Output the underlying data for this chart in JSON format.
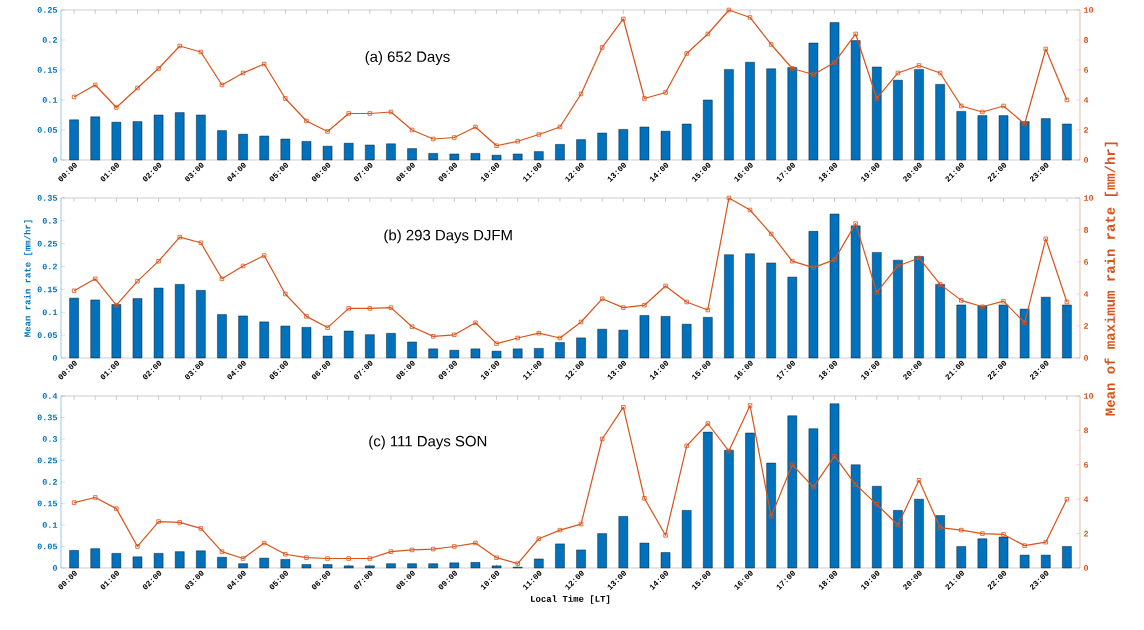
{
  "chart_data": [
    {
      "type": "bar",
      "title": "(a) 652 Days",
      "categories": [
        "00:00",
        null,
        "01:00",
        null,
        "02:00",
        null,
        "03:00",
        null,
        "04:00",
        null,
        "05:00",
        null,
        "06:00",
        null,
        "07:00",
        null,
        "08:00",
        null,
        "09:00",
        null,
        "10:00",
        null,
        "11:00",
        null,
        "12:00",
        null,
        "13:00",
        null,
        "14:00",
        null,
        "15:00",
        null,
        "16:00",
        null,
        "17:00",
        null,
        "18:00",
        null,
        "19:00",
        null,
        "20:00",
        null,
        "21:00",
        null,
        "22:00",
        null,
        "23:00",
        null
      ],
      "series": [
        {
          "color": "#0072bd",
          "values": [
            0.067,
            0.072,
            0.063,
            0.064,
            0.075,
            0.079,
            0.075,
            0.049,
            0.043,
            0.04,
            0.035,
            0.031,
            0.023,
            0.028,
            0.025,
            0.027,
            0.019,
            0.011,
            0.01,
            0.011,
            0.008,
            0.01,
            0.014,
            0.026,
            0.034,
            0.045,
            0.051,
            0.055,
            0.048,
            0.06,
            0.1,
            0.151,
            0.163,
            0.152,
            0.154,
            0.195,
            0.229,
            0.199,
            0.155,
            0.133,
            0.151,
            0.126,
            0.081,
            0.074,
            0.074,
            0.064,
            0.069,
            0.06
          ]
        },
        {
          "type": "line",
          "axis": "y2",
          "color": "#d95319",
          "marker": "square",
          "values": [
            4.2,
            5.0,
            3.5,
            4.8,
            6.1,
            7.6,
            7.2,
            5.0,
            5.8,
            6.4,
            4.1,
            2.6,
            1.9,
            3.1,
            3.1,
            3.2,
            2.0,
            1.4,
            1.5,
            2.2,
            0.95,
            1.25,
            1.7,
            2.2,
            4.4,
            7.5,
            9.4,
            4.1,
            4.5,
            7.1,
            8.4,
            10.0,
            9.5,
            7.7,
            6.1,
            5.7,
            6.5,
            8.4,
            4.1,
            5.8,
            6.3,
            5.8,
            3.6,
            3.2,
            3.6,
            2.4,
            7.4,
            4.0
          ]
        }
      ],
      "ylim": [
        0,
        0.25
      ],
      "yticks": [
        0,
        0.05,
        0.1,
        0.15,
        0.2,
        0.25
      ],
      "y2lim": [
        0,
        10
      ],
      "y2ticks": [
        0,
        2,
        4,
        6,
        8,
        10
      ]
    },
    {
      "type": "bar",
      "title": "(b) 293 Days DJFM",
      "ylabel": "Mean rain rate [mm/hr]",
      "y2label": "Mean of maximum rain rate [mm/hr]",
      "categories": [
        "00:00",
        null,
        "01:00",
        null,
        "02:00",
        null,
        "03:00",
        null,
        "04:00",
        null,
        "05:00",
        null,
        "06:00",
        null,
        "07:00",
        null,
        "08:00",
        null,
        "09:00",
        null,
        "10:00",
        null,
        "11:00",
        null,
        "12:00",
        null,
        "13:00",
        null,
        "14:00",
        null,
        "15:00",
        null,
        "16:00",
        null,
        "17:00",
        null,
        "18:00",
        null,
        "19:00",
        null,
        "20:00",
        null,
        "21:00",
        null,
        "22:00",
        null,
        "23:00",
        null
      ],
      "series": [
        {
          "color": "#0072bd",
          "values": [
            0.131,
            0.127,
            0.117,
            0.13,
            0.153,
            0.161,
            0.148,
            0.095,
            0.092,
            0.079,
            0.07,
            0.067,
            0.048,
            0.059,
            0.051,
            0.054,
            0.035,
            0.02,
            0.017,
            0.02,
            0.015,
            0.02,
            0.021,
            0.034,
            0.044,
            0.063,
            0.061,
            0.093,
            0.091,
            0.074,
            0.089,
            0.226,
            0.228,
            0.208,
            0.177,
            0.277,
            0.315,
            0.289,
            0.231,
            0.214,
            0.222,
            0.161,
            0.116,
            0.114,
            0.116,
            0.107,
            0.133,
            0.116
          ]
        },
        {
          "type": "line",
          "axis": "y2",
          "color": "#d95319",
          "marker": "square",
          "values": [
            4.2,
            4.95,
            3.3,
            4.8,
            6.05,
            7.55,
            7.2,
            4.95,
            5.75,
            6.4,
            4.0,
            2.6,
            1.9,
            3.1,
            3.1,
            3.15,
            1.95,
            1.35,
            1.45,
            2.2,
            0.9,
            1.25,
            1.55,
            1.25,
            2.25,
            3.7,
            3.15,
            3.3,
            4.5,
            3.5,
            3.0,
            10.0,
            9.25,
            7.75,
            6.05,
            5.65,
            6.15,
            8.4,
            4.1,
            5.75,
            6.25,
            4.6,
            3.6,
            3.2,
            3.55,
            2.2,
            7.45,
            3.5
          ]
        }
      ],
      "ylim": [
        0,
        0.35
      ],
      "yticks": [
        0,
        0.05,
        0.1,
        0.15,
        0.2,
        0.25,
        0.3,
        0.35
      ],
      "y2lim": [
        0,
        10
      ],
      "y2ticks": [
        0,
        2,
        4,
        6,
        8,
        10
      ]
    },
    {
      "type": "bar",
      "title": "(c) 111 Days SON",
      "xlabel": "Local Time [LT]",
      "categories": [
        "00:00",
        null,
        "01:00",
        null,
        "02:00",
        null,
        "03:00",
        null,
        "04:00",
        null,
        "05:00",
        null,
        "06:00",
        null,
        "07:00",
        null,
        "08:00",
        null,
        "09:00",
        null,
        "10:00",
        null,
        "11:00",
        null,
        "12:00",
        null,
        "13:00",
        null,
        "14:00",
        null,
        "15:00",
        null,
        "16:00",
        null,
        "17:00",
        null,
        "18:00",
        null,
        "19:00",
        null,
        "20:00",
        null,
        "21:00",
        null,
        "22:00",
        null,
        "23:00",
        null
      ],
      "series": [
        {
          "color": "#0072bd",
          "values": [
            0.041,
            0.045,
            0.034,
            0.026,
            0.034,
            0.038,
            0.04,
            0.025,
            0.01,
            0.023,
            0.02,
            0.008,
            0.008,
            0.005,
            0.005,
            0.01,
            0.01,
            0.01,
            0.012,
            0.013,
            0.005,
            0.002,
            0.021,
            0.056,
            0.042,
            0.08,
            0.12,
            0.058,
            0.036,
            0.134,
            0.316,
            0.274,
            0.314,
            0.244,
            0.354,
            0.324,
            0.382,
            0.24,
            0.19,
            0.134,
            0.16,
            0.122,
            0.05,
            0.068,
            0.072,
            0.03,
            0.03,
            0.05
          ]
        },
        {
          "type": "line",
          "axis": "y2",
          "color": "#d95319",
          "marker": "square",
          "values": [
            3.8,
            4.1,
            3.45,
            1.25,
            2.7,
            2.65,
            2.3,
            0.95,
            0.55,
            1.45,
            0.8,
            0.6,
            0.55,
            0.55,
            0.55,
            0.95,
            1.05,
            1.1,
            1.25,
            1.45,
            0.6,
            0.25,
            1.7,
            2.2,
            2.55,
            7.5,
            9.35,
            4.05,
            1.9,
            7.1,
            8.4,
            6.8,
            9.45,
            3.0,
            6.0,
            4.7,
            6.5,
            4.85,
            3.7,
            2.5,
            5.1,
            2.35,
            2.2,
            2.0,
            1.95,
            1.3,
            1.5,
            4.0
          ]
        }
      ],
      "ylim": [
        0,
        0.4
      ],
      "yticks": [
        0,
        0.05,
        0.1,
        0.15,
        0.2,
        0.25,
        0.3,
        0.35,
        0.4
      ],
      "y2lim": [
        0,
        10
      ],
      "y2ticks": [
        0,
        2,
        4,
        6,
        8,
        10
      ]
    }
  ]
}
